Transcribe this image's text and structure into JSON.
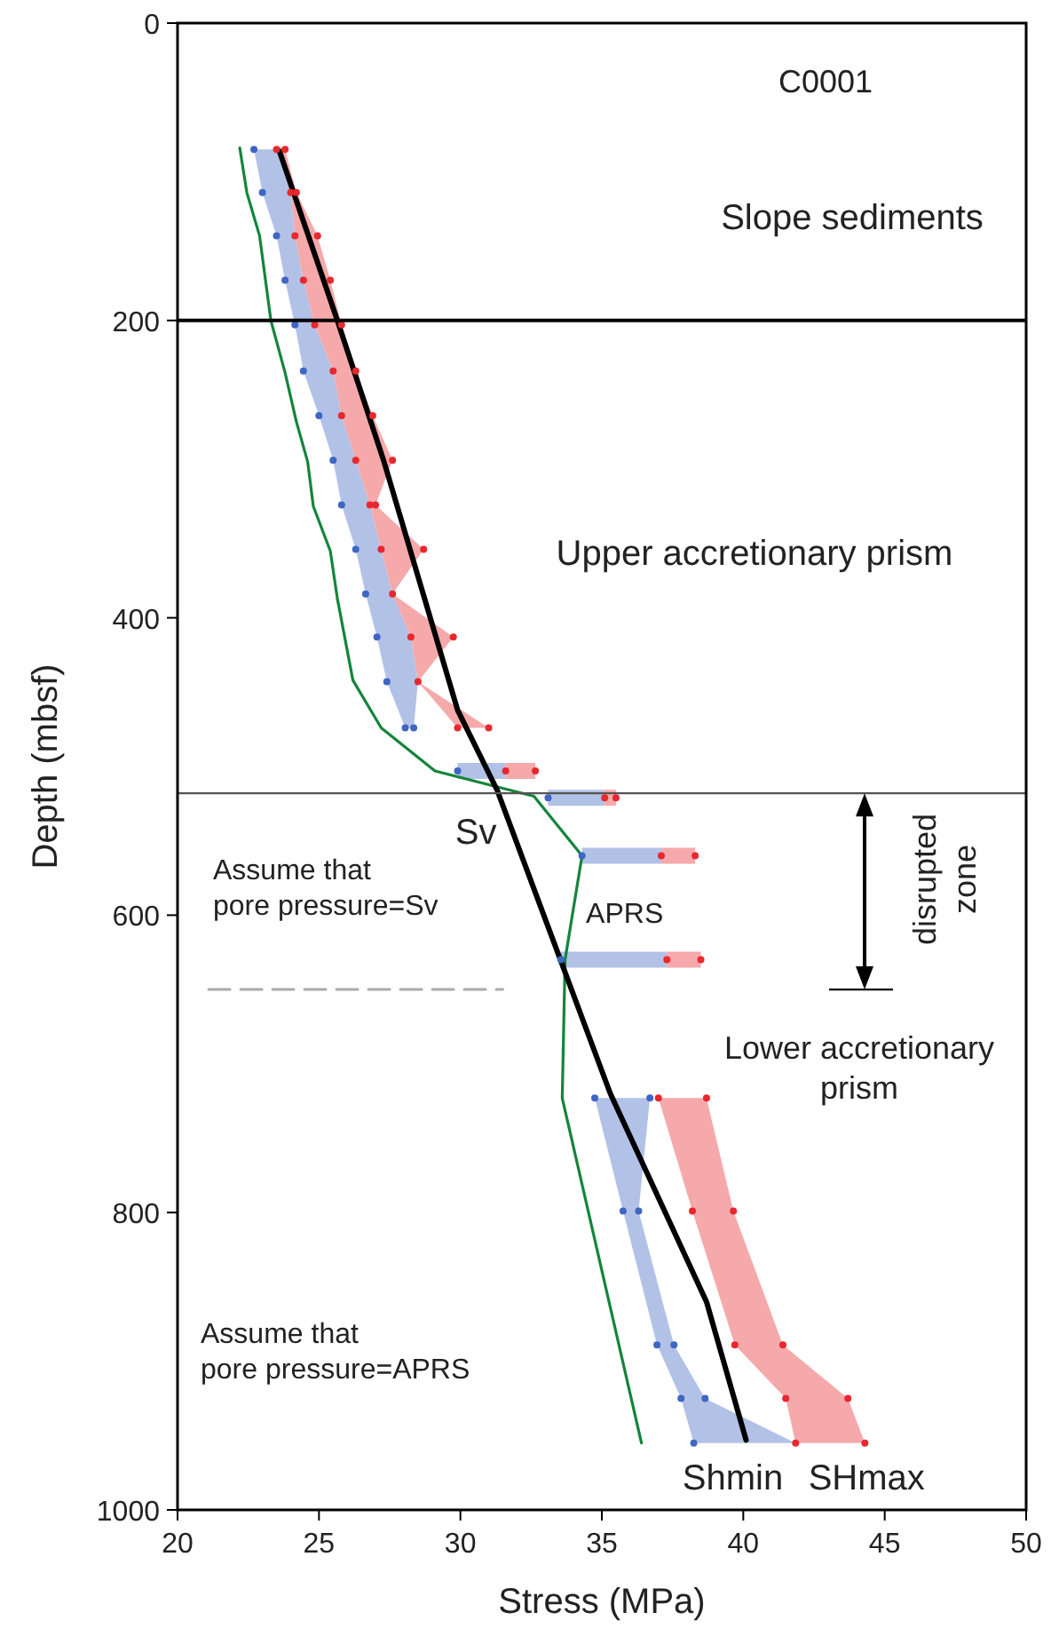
{
  "chart_data": {
    "type": "line",
    "xlabel": "Stress (MPa)",
    "ylabel": "Depth (mbsf)",
    "xlim": [
      20,
      50
    ],
    "xticks": [
      20,
      25,
      30,
      35,
      40,
      45,
      50
    ],
    "ylim": [
      1000,
      0
    ],
    "yticks": [
      0,
      200,
      400,
      600,
      800,
      1000
    ],
    "grid": false,
    "series": [
      {
        "name": "Shmin",
        "type": "scatter",
        "color": "#3f66c4",
        "marker": "circle",
        "x": [
          22.7,
          23.0,
          23.5,
          23.8,
          24.15,
          24.45,
          25.0,
          25.5,
          25.8,
          26.3,
          26.65,
          27.05,
          27.4,
          28.05,
          null,
          29.9,
          null,
          33.1,
          null,
          34.3,
          null,
          33.55,
          null,
          34.75,
          35.75,
          36.95,
          37.8,
          38.25
        ],
        "values": [
          85,
          114,
          143,
          173,
          203,
          234,
          264,
          294,
          324,
          354,
          384,
          413,
          443,
          474,
          null,
          503,
          null,
          521,
          null,
          560,
          null,
          630,
          null,
          723,
          799,
          889,
          925,
          955
        ]
      },
      {
        "type": "scatter",
        "color": "#3f66c4",
        "marker": "circle",
        "x": [
          null,
          null,
          null,
          null,
          null,
          null,
          null,
          null,
          null,
          null,
          null,
          null,
          null,
          28.35,
          null,
          null,
          null,
          null,
          null,
          null,
          null,
          null,
          null,
          36.7,
          36.3,
          37.55,
          38.65,
          null
        ],
        "values": [
          null,
          null,
          null,
          null,
          null,
          null,
          null,
          null,
          null,
          null,
          null,
          null,
          null,
          474,
          null,
          null,
          null,
          null,
          null,
          null,
          null,
          null,
          null,
          723,
          799,
          889,
          925,
          null
        ]
      },
      {
        "name": "SHmax",
        "type": "scatter",
        "color": "#e8282e",
        "marker": "circle",
        "x": [
          23.5,
          24.0,
          24.15,
          24.45,
          24.85,
          25.5,
          25.8,
          26.3,
          26.8,
          27.2,
          27.6,
          28.25,
          28.5,
          29.9,
          null,
          31.6,
          null,
          35.1,
          null,
          37.1,
          null,
          37.3,
          null,
          37.0,
          38.2,
          39.7,
          41.5,
          41.85
        ],
        "values": [
          85,
          114,
          143,
          173,
          203,
          234,
          264,
          294,
          324,
          354,
          384,
          413,
          443,
          474,
          null,
          503,
          null,
          521,
          null,
          560,
          null,
          630,
          null,
          723,
          799,
          889,
          925,
          955
        ]
      },
      {
        "type": "scatter",
        "color": "#e8282e",
        "marker": "circle",
        "x": [
          23.8,
          24.2,
          24.95,
          25.4,
          25.8,
          26.3,
          26.9,
          27.6,
          27.0,
          28.7,
          null,
          29.75,
          null,
          31.0,
          null,
          32.65,
          null,
          35.5,
          null,
          38.3,
          null,
          38.5,
          null,
          38.7,
          39.65,
          41.4,
          43.7,
          44.3
        ],
        "values": [
          85,
          114,
          143,
          173,
          203,
          234,
          264,
          294,
          324,
          354,
          null,
          413,
          null,
          474,
          null,
          503,
          null,
          521,
          null,
          560,
          null,
          630,
          null,
          723,
          799,
          889,
          925,
          955
        ]
      },
      {
        "name": "APRS",
        "color": "#13853a",
        "x": [
          22.2,
          22.45,
          22.9,
          23.3,
          23.8,
          24.2,
          24.6,
          24.8,
          25.4,
          25.65,
          26.2,
          27.2,
          29.1,
          32.6,
          34.3,
          33.7,
          33.6,
          36.4
        ],
        "values": [
          84,
          114,
          143,
          200,
          235,
          268,
          295,
          325,
          355,
          387,
          442,
          474,
          503,
          520,
          560,
          630,
          723,
          955
        ]
      },
      {
        "name": "Sv",
        "color": "#000000",
        "x": [
          23.6,
          25.65,
          27.3,
          29.9,
          31.3,
          35.3,
          38.7,
          40.1
        ],
        "values": [
          86,
          200,
          295,
          462,
          516,
          720,
          860,
          953
        ]
      },
      {
        "color": "#aaaaaa",
        "line_style": "dashed",
        "x": [
          21.1,
          31.5
        ],
        "values": [
          650,
          650
        ]
      }
    ],
    "ref_lines": [
      {
        "axis": "y",
        "value": 200,
        "color": "#000000"
      },
      {
        "axis": "y",
        "value": 518,
        "color": "#555555"
      }
    ],
    "annotations": [
      "C0001",
      "Slope sediments",
      "Upper accretionary prism",
      "Lower accretionary\nprism",
      "Assume that\npore pressure=Sv",
      "Assume that\npore pressure=APRS",
      "disrupted\nzone"
    ]
  }
}
